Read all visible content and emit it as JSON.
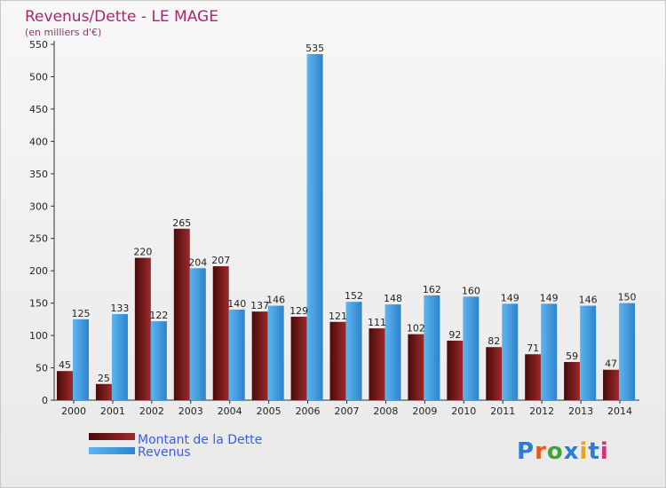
{
  "chart_data": {
    "type": "bar",
    "title": "Revenus/Dette - LE MAGE",
    "subtitle": "(en milliers d'€)",
    "categories": [
      "2000",
      "2001",
      "2002",
      "2003",
      "2004",
      "2005",
      "2006",
      "2007",
      "2008",
      "2009",
      "2010",
      "2011",
      "2012",
      "2013",
      "2014"
    ],
    "series": [
      {
        "name": "Montant de la Dette",
        "values": [
          45,
          25,
          220,
          265,
          207,
          137,
          129,
          121,
          111,
          102,
          92,
          82,
          71,
          59,
          47
        ]
      },
      {
        "name": "Revenus",
        "values": [
          125,
          133,
          122,
          204,
          140,
          146,
          535,
          152,
          148,
          162,
          160,
          149,
          149,
          146,
          150
        ]
      }
    ],
    "ylim": [
      0,
      550
    ],
    "yticks": [
      0,
      50,
      100,
      150,
      200,
      250,
      300,
      350,
      400,
      450,
      500,
      550
    ],
    "grid": false,
    "legend": "bottom-left"
  },
  "logo_text": "Proxiti",
  "colors": {
    "title": "#b0246a",
    "legend_text": "#3b5be8",
    "debt_dark": "#4a0a0a",
    "debt_light": "#9e2a2a",
    "revenue_dark": "#2b84cc",
    "revenue_light": "#5fb4ef"
  }
}
